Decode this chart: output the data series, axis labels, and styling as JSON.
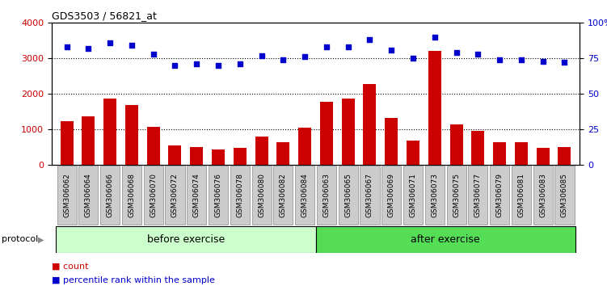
{
  "title": "GDS3503 / 56821_at",
  "categories": [
    "GSM306062",
    "GSM306064",
    "GSM306066",
    "GSM306068",
    "GSM306070",
    "GSM306072",
    "GSM306074",
    "GSM306076",
    "GSM306078",
    "GSM306080",
    "GSM306082",
    "GSM306084",
    "GSM306063",
    "GSM306065",
    "GSM306067",
    "GSM306069",
    "GSM306071",
    "GSM306073",
    "GSM306075",
    "GSM306077",
    "GSM306079",
    "GSM306081",
    "GSM306083",
    "GSM306085"
  ],
  "bar_values": [
    1220,
    1370,
    1860,
    1680,
    1060,
    530,
    490,
    420,
    460,
    800,
    620,
    1050,
    1760,
    1870,
    2280,
    1310,
    680,
    3200,
    1120,
    940,
    640,
    620,
    480,
    490
  ],
  "percentile_values": [
    83,
    82,
    86,
    84,
    78,
    70,
    71,
    70,
    71,
    77,
    74,
    76,
    83,
    83,
    88,
    81,
    75,
    90,
    79,
    78,
    74,
    74,
    73,
    72
  ],
  "bar_color": "#cc0000",
  "percentile_color": "#0000cc",
  "ylim_left": [
    0,
    4000
  ],
  "ylim_right": [
    0,
    100
  ],
  "yticks_left": [
    0,
    1000,
    2000,
    3000,
    4000
  ],
  "yticks_right": [
    0,
    25,
    50,
    75,
    100
  ],
  "ytick_labels_right": [
    "0",
    "25",
    "50",
    "75",
    "100%"
  ],
  "before_count": 12,
  "after_count": 12,
  "before_label": "before exercise",
  "after_label": "after exercise",
  "protocol_label": "protocol",
  "legend_count_label": "count",
  "legend_percentile_label": "percentile rank within the sample",
  "before_color": "#ccffcc",
  "after_color": "#55dd55",
  "tick_bg_color": "#cccccc",
  "plot_bg_color": "#ffffff",
  "grid_color": "#000000"
}
